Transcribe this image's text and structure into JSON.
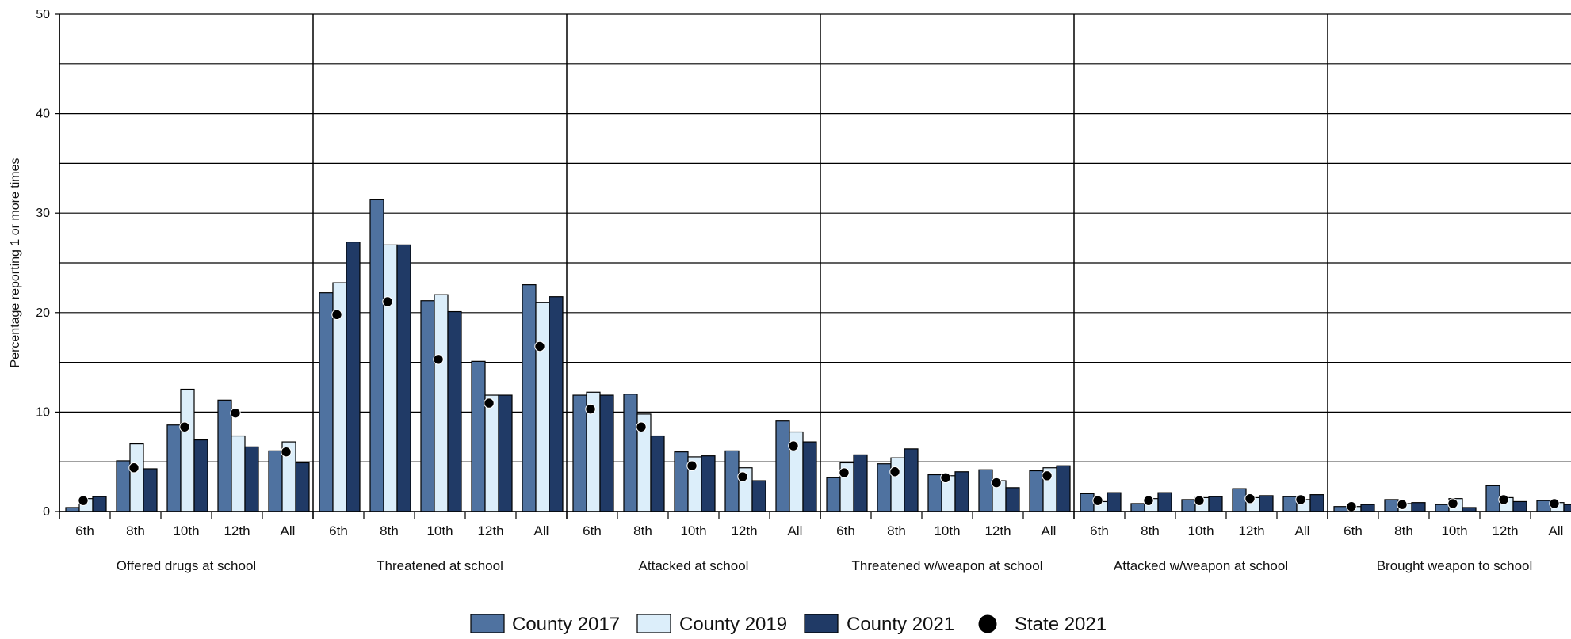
{
  "chart_data": {
    "type": "bar",
    "title": "",
    "xlabel": "",
    "ylabel": "Percentage reporting 1 or more times",
    "ylim": [
      0,
      50
    ],
    "yticks": [
      0,
      10,
      20,
      30,
      40,
      50
    ],
    "grid": true,
    "legend_position": "bottom",
    "colors": {
      "County 2017": "#4f72a0",
      "County 2019": "#dceefa",
      "County 2021": "#203a66",
      "State 2021": "#000000"
    },
    "series": [
      {
        "name": "County 2017"
      },
      {
        "name": "County 2019"
      },
      {
        "name": "County 2021"
      },
      {
        "name": "State 2021"
      }
    ],
    "groups": [
      {
        "label": "Offered drugs at school",
        "categories": [
          "6th",
          "8th",
          "10th",
          "12th",
          "All"
        ],
        "County 2017": [
          0.4,
          5.1,
          8.7,
          11.2,
          6.1
        ],
        "County 2019": [
          1.3,
          6.8,
          12.3,
          7.6,
          7.0
        ],
        "County 2021": [
          1.5,
          4.3,
          7.2,
          6.5,
          4.9
        ],
        "State 2021": [
          1.1,
          4.4,
          8.5,
          9.9,
          6.0
        ]
      },
      {
        "label": "Threatened at school",
        "categories": [
          "6th",
          "8th",
          "10th",
          "12th",
          "All"
        ],
        "County 2017": [
          22.0,
          31.4,
          21.2,
          15.1,
          22.8
        ],
        "County 2019": [
          23.0,
          26.8,
          21.8,
          11.7,
          21.0
        ],
        "County 2021": [
          27.1,
          26.8,
          20.1,
          11.7,
          21.6
        ],
        "State 2021": [
          19.8,
          21.1,
          15.3,
          10.9,
          16.6
        ]
      },
      {
        "label": "Attacked at school",
        "categories": [
          "6th",
          "8th",
          "10th",
          "12th",
          "All"
        ],
        "County 2017": [
          11.7,
          11.8,
          6.0,
          6.1,
          9.1
        ],
        "County 2019": [
          12.0,
          9.8,
          5.5,
          4.4,
          8.0
        ],
        "County 2021": [
          11.7,
          7.6,
          5.6,
          3.1,
          7.0
        ],
        "State 2021": [
          10.3,
          8.5,
          4.6,
          3.5,
          6.6
        ]
      },
      {
        "label": "Threatened w/weapon at school",
        "categories": [
          "6th",
          "8th",
          "10th",
          "12th",
          "All"
        ],
        "County 2017": [
          3.4,
          4.8,
          3.7,
          4.2,
          4.1
        ],
        "County 2019": [
          4.9,
          5.4,
          3.6,
          3.1,
          4.4
        ],
        "County 2021": [
          5.7,
          6.3,
          4.0,
          2.4,
          4.6
        ],
        "State 2021": [
          3.9,
          4.0,
          3.4,
          2.9,
          3.6
        ]
      },
      {
        "label": "Attacked w/weapon at school",
        "categories": [
          "6th",
          "8th",
          "10th",
          "12th",
          "All"
        ],
        "County 2017": [
          1.8,
          0.8,
          1.2,
          2.3,
          1.5
        ],
        "County 2019": [
          1.0,
          1.3,
          1.4,
          1.4,
          1.2
        ],
        "County 2021": [
          1.9,
          1.9,
          1.5,
          1.6,
          1.7
        ],
        "State 2021": [
          1.1,
          1.1,
          1.1,
          1.3,
          1.2
        ]
      },
      {
        "label": "Brought weapon to school",
        "categories": [
          "6th",
          "8th",
          "10th",
          "12th",
          "All"
        ],
        "County 2017": [
          0.5,
          1.2,
          0.7,
          2.6,
          1.1
        ],
        "County 2019": [
          0.5,
          0.8,
          1.3,
          1.4,
          0.9
        ],
        "County 2021": [
          0.7,
          0.9,
          0.4,
          1.0,
          0.7
        ],
        "State 2021": [
          0.5,
          0.7,
          0.8,
          1.2,
          0.8
        ]
      }
    ]
  }
}
